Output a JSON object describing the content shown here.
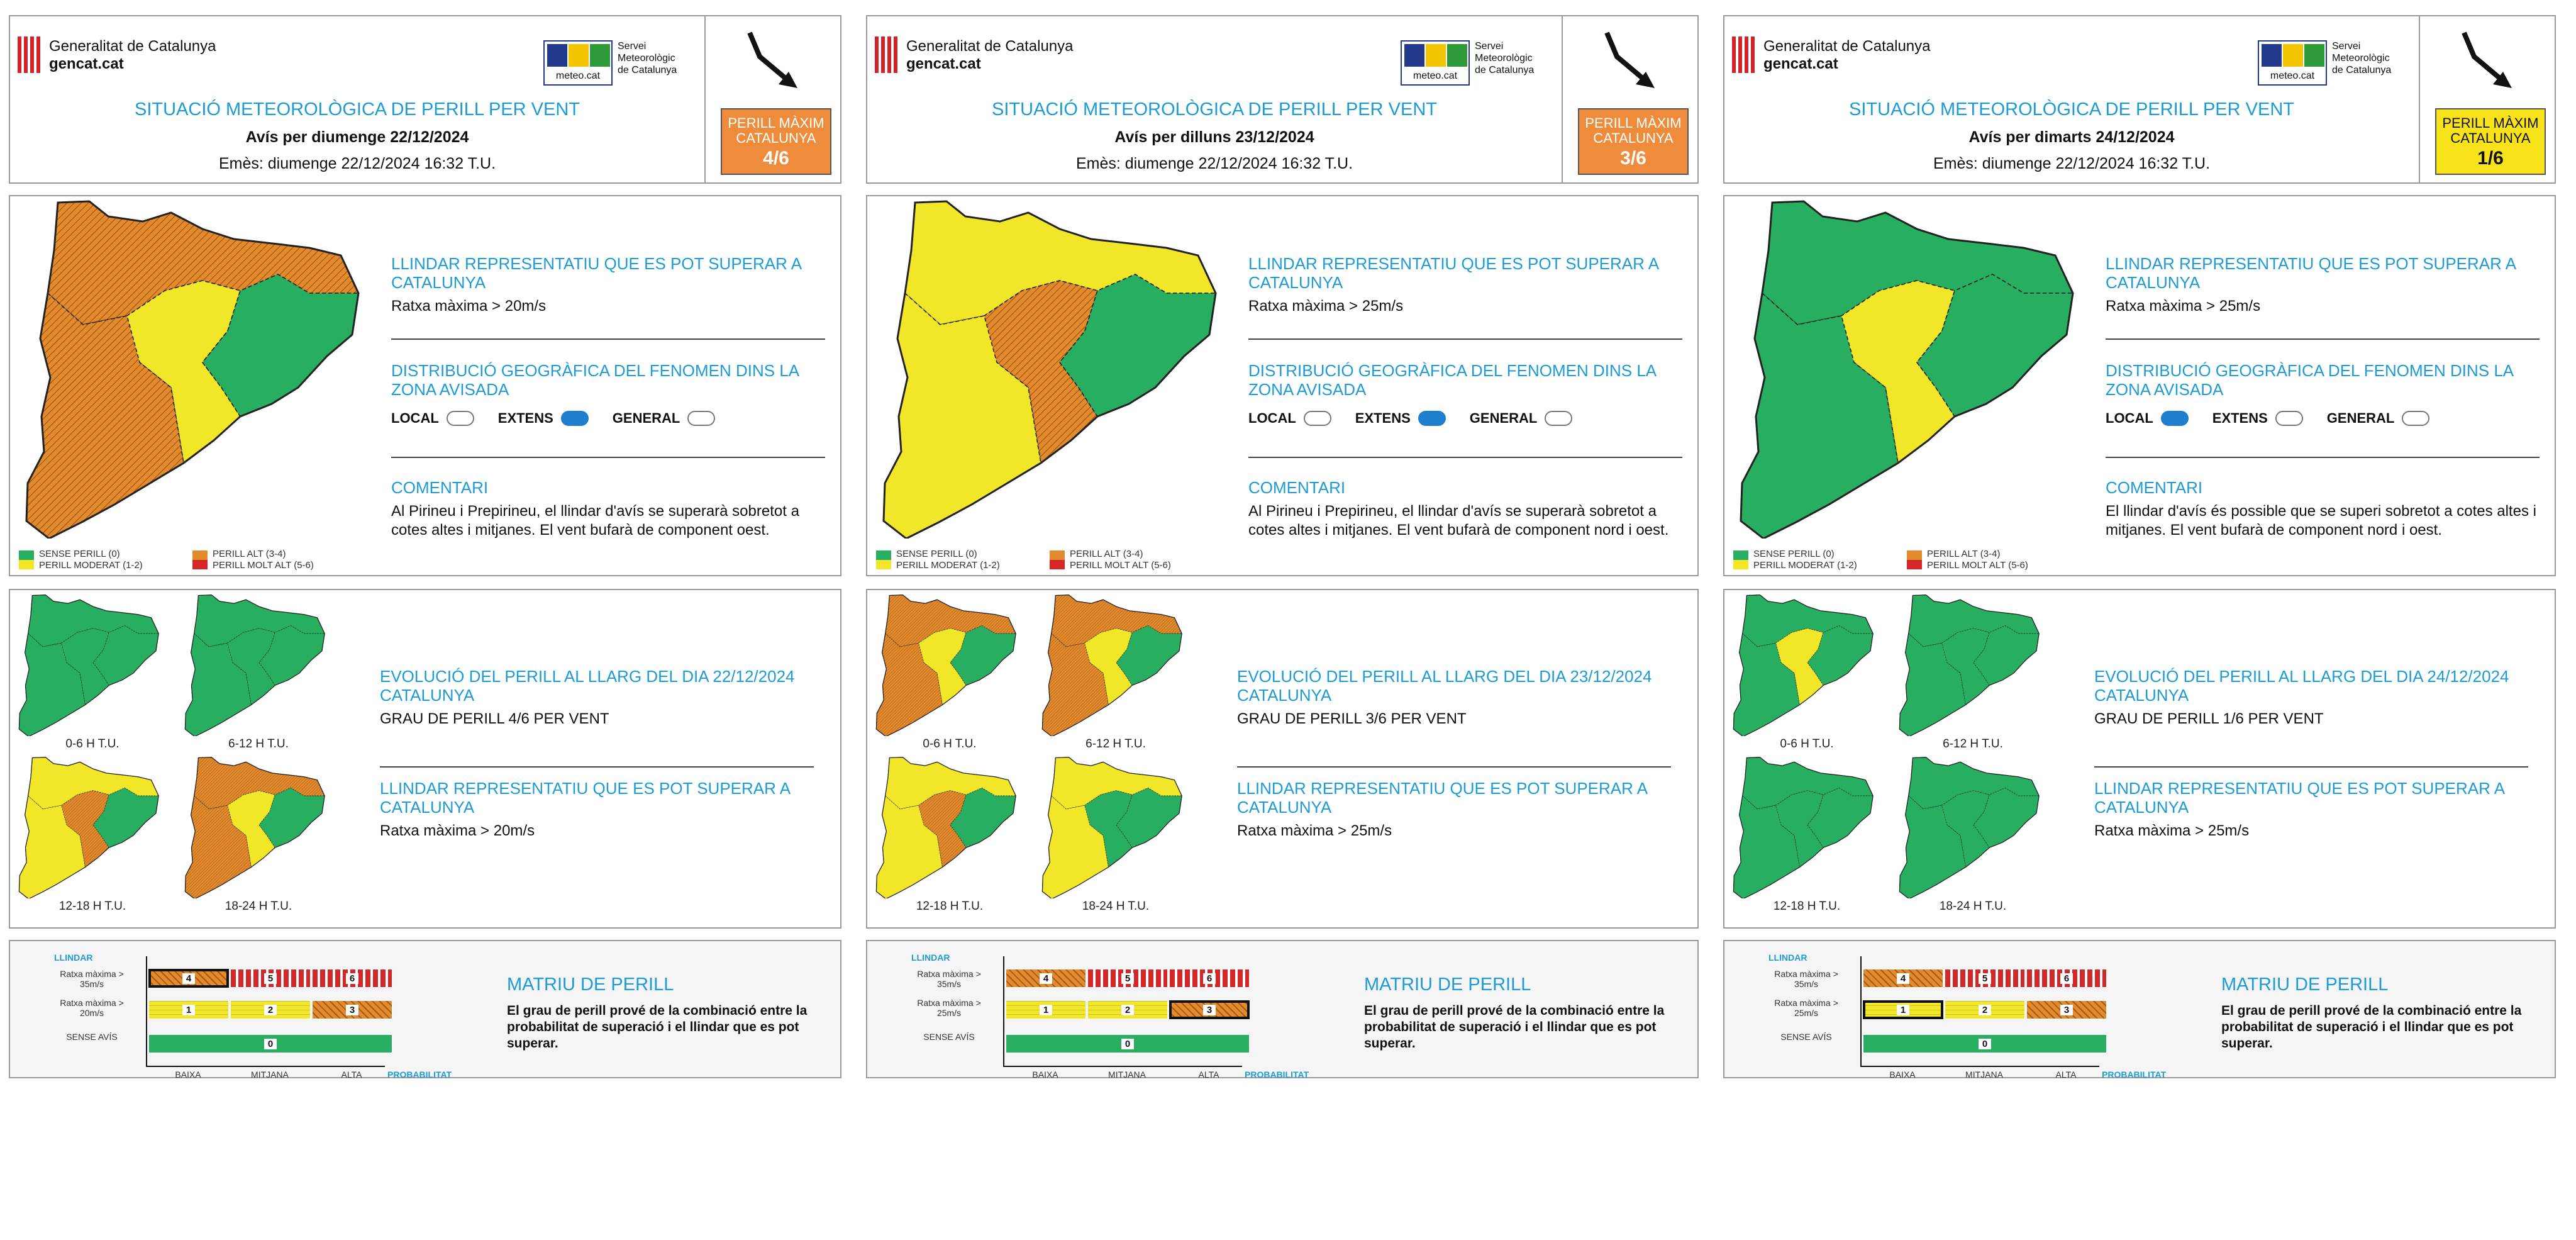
{
  "brand": {
    "gencat_line1": "Generalitat de Catalunya",
    "gencat_line2": "gencat.cat",
    "meteo_logo": "meteo.cat",
    "servei": [
      "Servei",
      "Meteorològic",
      "de Catalunya"
    ]
  },
  "colors": {
    "sense": "#27ae60",
    "moderat": "#f2e628",
    "alt": "#e38b2c",
    "molt_alt": "#d62728",
    "accent": "#1d9bd7",
    "badge_1": "#f8e21a",
    "badge_3": "#ef8c3c",
    "badge_4": "#ef8c3c"
  },
  "legend": [
    "SENSE PERILL (0)",
    "PERILL MODERAT (1-2)",
    "PERILL ALT (3-4)",
    "PERILL MOLT ALT (5-6)"
  ],
  "sheets": [
    {
      "title": "SITUACIÓ METEOROLÒGICA DE PERILL PER VENT",
      "avis": "Avís per diumenge 22/12/2024",
      "emes": "Emès: diumenge 22/12/2024 16:32 T.U.",
      "badge": {
        "l1": "PERILL MÀXIM",
        "l2": "CATALUNYA",
        "level": "4/6",
        "color": "#ef8c3c",
        "text": "#ffffff"
      },
      "llindar_h": "LLINDAR REPRESENTATIU QUE ES POT SUPERAR A CATALUNYA",
      "llindar_v": "Ratxa màxima > 20m/s",
      "dist_h": "DISTRIBUCIÓ GEOGRÀFICA DEL FENOMEN DINS LA ZONA AVISADA",
      "dist": [
        {
          "label": "LOCAL",
          "on": false
        },
        {
          "label": "EXTENS",
          "on": true
        },
        {
          "label": "GENERAL",
          "on": false
        }
      ],
      "com_h": "COMENTARI",
      "com": "Al Pirineu i Prepirineu, el llindar d'avís se superarà sobretot a cotes altes i mitjanes. El vent bufarà de component oest.",
      "main_map": [
        "alt",
        "moderat",
        "sense"
      ],
      "evo_h": "EVOLUCIÓ DEL PERILL AL LLARG DEL DIA 22/12/2024 CATALUNYA",
      "grau": "GRAU DE PERILL 4/6 PER VENT",
      "llindar2_h": "LLINDAR REPRESENTATIU QUE ES POT SUPERAR A CATALUNYA",
      "llindar2_v": "Ratxa màxima > 20m/s",
      "periods": [
        {
          "label": "0-6 H T.U.",
          "map": [
            "sense"
          ]
        },
        {
          "label": "6-12 H T.U.",
          "map": [
            "sense"
          ]
        },
        {
          "label": "12-18 H T.U.",
          "map": [
            "moderat",
            "alt",
            "sense"
          ]
        },
        {
          "label": "18-24 H T.U.",
          "map": [
            "alt",
            "moderat",
            "sense"
          ]
        }
      ],
      "matrix": {
        "llindar": "LLINDAR",
        "rows": [
          "Ratxa màxima > 35m/s",
          "Ratxa màxima > 20m/s",
          "SENSE AVÍS"
        ],
        "cols": [
          "BAIXA",
          "MITJANA",
          "ALTA"
        ],
        "axis": "PROBABILITAT",
        "selected": "4"
      },
      "matriu_h": "MATRIU DE PERILL",
      "matriu_p": "El grau de perill prové de la combinació entre la probabilitat de superació i el llindar que es pot superar."
    },
    {
      "title": "SITUACIÓ METEOROLÒGICA DE PERILL PER VENT",
      "avis": "Avís per dilluns 23/12/2024",
      "emes": "Emès: diumenge 22/12/2024 16:32 T.U.",
      "badge": {
        "l1": "PERILL MÀXIM",
        "l2": "CATALUNYA",
        "level": "3/6",
        "color": "#ef8c3c",
        "text": "#ffffff"
      },
      "llindar_h": "LLINDAR REPRESENTATIU QUE ES POT SUPERAR A CATALUNYA",
      "llindar_v": "Ratxa màxima > 25m/s",
      "dist_h": "DISTRIBUCIÓ GEOGRÀFICA DEL FENOMEN DINS LA ZONA AVISADA",
      "dist": [
        {
          "label": "LOCAL",
          "on": false
        },
        {
          "label": "EXTENS",
          "on": true
        },
        {
          "label": "GENERAL",
          "on": false
        }
      ],
      "com_h": "COMENTARI",
      "com": "Al Pirineu i Prepirineu, el llindar d'avís se superarà sobretot a cotes altes i mitjanes. El vent bufarà de component nord i oest.",
      "main_map": [
        "moderat",
        "alt",
        "sense"
      ],
      "evo_h": "EVOLUCIÓ DEL PERILL AL LLARG DEL DIA 23/12/2024 CATALUNYA",
      "grau": "GRAU DE PERILL 3/6 PER VENT",
      "llindar2_h": "LLINDAR REPRESENTATIU QUE ES POT SUPERAR A CATALUNYA",
      "llindar2_v": "Ratxa màxima > 25m/s",
      "periods": [
        {
          "label": "0-6 H T.U.",
          "map": [
            "alt",
            "moderat",
            "sense"
          ]
        },
        {
          "label": "6-12 H T.U.",
          "map": [
            "alt",
            "moderat",
            "sense"
          ]
        },
        {
          "label": "12-18 H T.U.",
          "map": [
            "moderat",
            "alt",
            "sense"
          ]
        },
        {
          "label": "18-24 H T.U.",
          "map": [
            "moderat",
            "sense",
            "sense"
          ]
        }
      ],
      "matrix": {
        "llindar": "LLINDAR",
        "rows": [
          "Ratxa màxima > 35m/s",
          "Ratxa màxima > 25m/s",
          "SENSE AVÍS"
        ],
        "cols": [
          "BAIXA",
          "MITJANA",
          "ALTA"
        ],
        "axis": "PROBABILITAT",
        "selected": "3"
      },
      "matriu_h": "MATRIU DE PERILL",
      "matriu_p": "El grau de perill prové de la combinació entre la probabilitat de superació i el llindar que es pot superar."
    },
    {
      "title": "SITUACIÓ METEOROLÒGICA DE PERILL PER VENT",
      "avis": "Avís per dimarts 24/12/2024",
      "emes": "Emès: diumenge 22/12/2024 16:32 T.U.",
      "badge": {
        "l1": "PERILL MÀXIM",
        "l2": "CATALUNYA",
        "level": "1/6",
        "color": "#f8e21a",
        "text": "#111111"
      },
      "llindar_h": "LLINDAR REPRESENTATIU QUE ES POT SUPERAR A CATALUNYA",
      "llindar_v": "Ratxa màxima > 25m/s",
      "dist_h": "DISTRIBUCIÓ GEOGRÀFICA DEL FENOMEN DINS LA ZONA AVISADA",
      "dist": [
        {
          "label": "LOCAL",
          "on": true
        },
        {
          "label": "EXTENS",
          "on": false
        },
        {
          "label": "GENERAL",
          "on": false
        }
      ],
      "com_h": "COMENTARI",
      "com": "El llindar d'avís és possible que se superi sobretot a cotes altes i mitjanes. El vent bufarà de component nord i oest.",
      "main_map": [
        "sense",
        "moderat",
        "sense"
      ],
      "evo_h": "EVOLUCIÓ DEL PERILL AL LLARG DEL DIA 24/12/2024 CATALUNYA",
      "grau": "GRAU DE PERILL 1/6 PER VENT",
      "llindar2_h": "LLINDAR REPRESENTATIU QUE ES POT SUPERAR A CATALUNYA",
      "llindar2_v": "Ratxa màxima > 25m/s",
      "periods": [
        {
          "label": "0-6 H T.U.",
          "map": [
            "sense",
            "moderat",
            "sense"
          ]
        },
        {
          "label": "6-12 H T.U.",
          "map": [
            "sense"
          ]
        },
        {
          "label": "12-18 H T.U.",
          "map": [
            "sense"
          ]
        },
        {
          "label": "18-24 H T.U.",
          "map": [
            "sense"
          ]
        }
      ],
      "matrix": {
        "llindar": "LLINDAR",
        "rows": [
          "Ratxa màxima > 35m/s",
          "Ratxa màxima > 25m/s",
          "SENSE AVÍS"
        ],
        "cols": [
          "BAIXA",
          "MITJANA",
          "ALTA"
        ],
        "axis": "PROBABILITAT",
        "selected": "1"
      },
      "matriu_h": "MATRIU DE PERILL",
      "matriu_p": "El grau de perill prové de la combinació entre la probabilitat de superació i el llindar que es pot superar."
    }
  ]
}
